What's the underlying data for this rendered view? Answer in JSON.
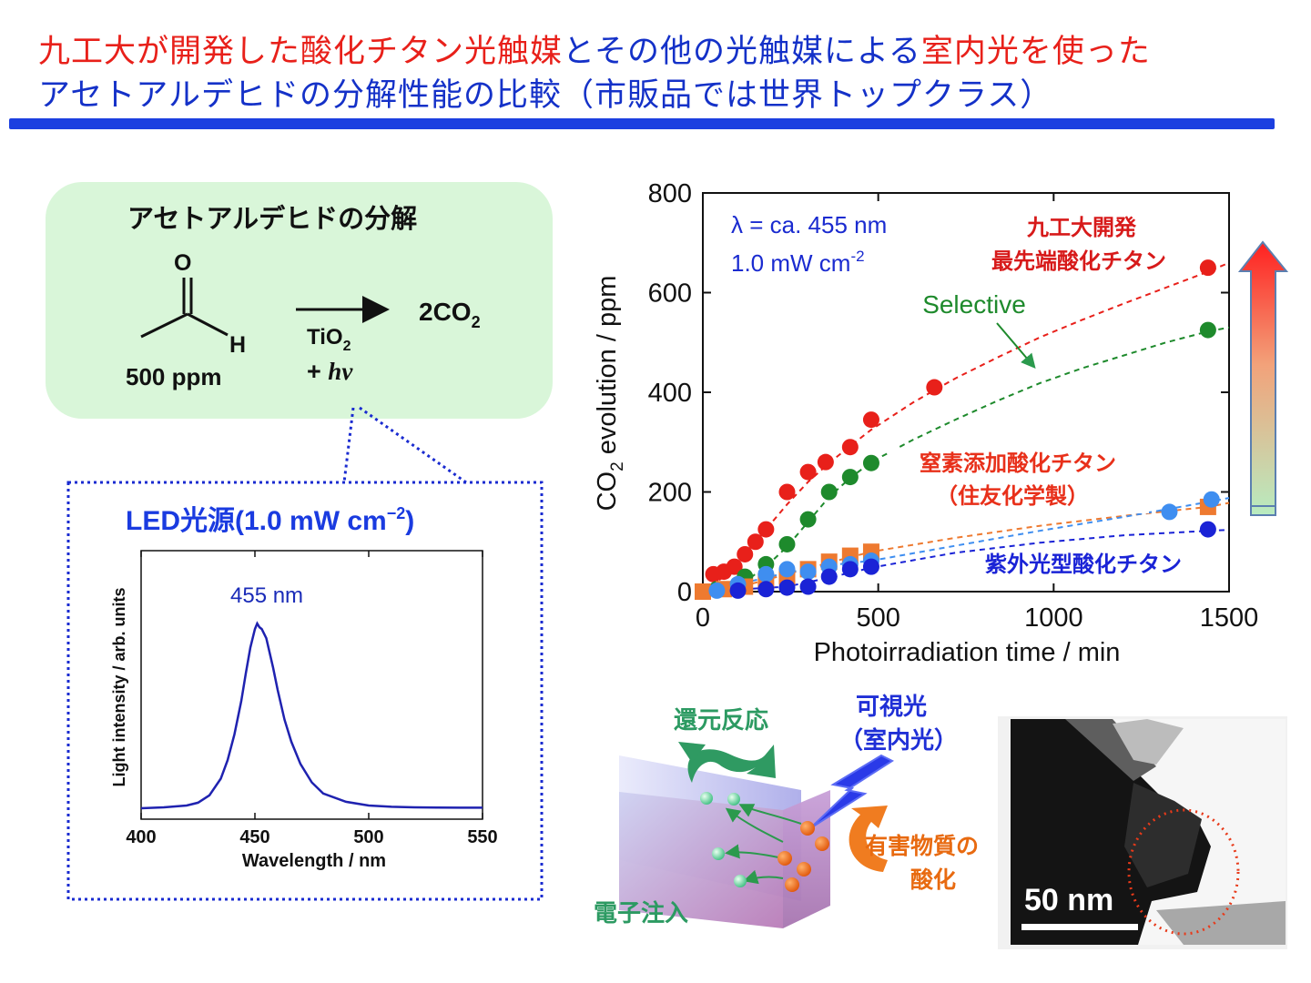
{
  "title": {
    "line1_part1": "九工大が開発した酸化チタン光触媒",
    "line1_part2": "とその他の光触媒による",
    "line1_part3": "室内光を使った",
    "line2": "アセトアルデヒドの分解性能の比較（市販品では世界トップクラス）"
  },
  "reaction": {
    "heading": "アセトアルデヒドの分解",
    "atom_o": "O",
    "atom_h": "H",
    "concentration": "500 ppm",
    "catalyst": "TiO",
    "catalyst_sub": "2",
    "light": "+ ",
    "light_h": "h",
    "light_nu": "ν",
    "product": "2CO",
    "product_sub": "2"
  },
  "led": {
    "heading": "LED光源",
    "heading_paren": "(1.0 mW cm",
    "heading_sup": "−2",
    "heading_close": ")"
  },
  "colors": {
    "title_red": "#e8201a",
    "title_blue": "#1431c8",
    "bubble_fill": "#d9f6d9",
    "tio2_red": "#e8201a",
    "selective_green": "#1e8a2c",
    "nitrogen_orange": "#ee7a30",
    "nitrogen_lightblue": "#3f8ef0",
    "uv_blue": "#1a23d6"
  },
  "chart_data": [
    {
      "type": "line",
      "title": "",
      "xlabel": "Wavelength / nm",
      "ylabel": "Light intensity / arb. units",
      "xlim": [
        400,
        550
      ],
      "xticks": [
        "400",
        "450",
        "500",
        "550"
      ],
      "annotation": "455 nm",
      "series": [
        {
          "x": [
            400,
            410,
            420,
            425,
            430,
            435,
            438,
            441,
            444,
            446,
            448,
            450,
            451,
            452,
            453,
            455,
            458,
            460,
            463,
            466,
            470,
            475,
            480,
            490,
            500,
            510,
            520,
            530,
            540,
            550
          ],
          "values": [
            0.0,
            0.005,
            0.015,
            0.03,
            0.07,
            0.16,
            0.26,
            0.4,
            0.58,
            0.73,
            0.87,
            0.97,
            1.0,
            0.98,
            0.97,
            0.92,
            0.76,
            0.64,
            0.48,
            0.36,
            0.24,
            0.14,
            0.08,
            0.035,
            0.015,
            0.008,
            0.005,
            0.004,
            0.003,
            0.003
          ]
        }
      ]
    },
    {
      "type": "scatter",
      "title": "",
      "xlabel": "Photoirradiation time / min",
      "ylabel": "CO2 evolution / ppm",
      "ylabel_main": "CO",
      "ylabel_sub": "2",
      "ylabel_rest": " evolution / ppm",
      "xlim": [
        0,
        1500
      ],
      "ylim": [
        0,
        800
      ],
      "xticks": [
        "0",
        "500",
        "1000",
        "1500"
      ],
      "yticks": [
        "0",
        "200",
        "400",
        "600",
        "800"
      ],
      "condition_lambda": "λ = ca. 455 nm",
      "condition_power": "1.0 mW cm",
      "condition_power_sup": "-2",
      "series": [
        {
          "name": "九工大開発 最先端酸化チタン",
          "label_line1": "九工大開発",
          "label_line2": "最先端酸化チタン",
          "color": "#e8201a",
          "marker": "circle",
          "x": [
            0,
            30,
            60,
            90,
            120,
            150,
            180,
            240,
            300,
            350,
            420,
            480,
            660,
            1440
          ],
          "values": [
            0,
            35,
            40,
            50,
            75,
            100,
            125,
            200,
            240,
            260,
            290,
            345,
            410,
            650
          ],
          "fit_x": [
            0,
            60,
            120,
            180,
            240,
            300,
            360,
            420,
            480,
            600,
            720,
            840,
            960,
            1080,
            1200,
            1320,
            1440,
            1500
          ],
          "fit_y": [
            0,
            30,
            75,
            125,
            175,
            220,
            258,
            292,
            325,
            380,
            428,
            470,
            510,
            545,
            578,
            610,
            642,
            660
          ]
        },
        {
          "name": "Selective",
          "color": "#1e8a2c",
          "marker": "circle",
          "x": [
            40,
            120,
            180,
            240,
            300,
            360,
            420,
            480,
            1440
          ],
          "values": [
            5,
            30,
            55,
            95,
            145,
            200,
            230,
            258,
            525
          ],
          "fit_x": [
            0,
            120,
            180,
            240,
            300,
            360,
            420,
            480,
            600,
            720,
            840,
            960,
            1080,
            1200,
            1320,
            1440,
            1500
          ],
          "fit_y": [
            0,
            20,
            50,
            90,
            140,
            190,
            228,
            260,
            305,
            345,
            383,
            418,
            448,
            474,
            500,
            522,
            530
          ]
        },
        {
          "name": "窒素添加酸化チタン （住友化学製）",
          "label_line1": "窒素添加酸化チタン",
          "label_line2": "（住友化学製）",
          "color": "#ee7a30",
          "marker": "square",
          "x": [
            0,
            60,
            120,
            180,
            240,
            300,
            360,
            420,
            480,
            1440
          ],
          "values": [
            0,
            5,
            10,
            20,
            30,
            45,
            60,
            72,
            80,
            170
          ],
          "fit_x": [
            0,
            120,
            240,
            360,
            480,
            720,
            960,
            1200,
            1440,
            1500
          ],
          "fit_y": [
            0,
            12,
            35,
            58,
            80,
            108,
            132,
            152,
            170,
            178
          ]
        },
        {
          "name": "窒素添加酸化チタン （住友化学製） (light blue)",
          "color": "#3f8ef0",
          "marker": "circle",
          "x": [
            40,
            100,
            180,
            240,
            300,
            360,
            420,
            480,
            1330,
            1450
          ],
          "values": [
            2,
            15,
            35,
            45,
            40,
            50,
            55,
            62,
            160,
            185
          ],
          "fit_x": [
            0,
            120,
            240,
            360,
            480,
            720,
            960,
            1200,
            1440,
            1500
          ],
          "fit_y": [
            0,
            18,
            38,
            53,
            62,
            92,
            122,
            150,
            180,
            188
          ]
        },
        {
          "name": "紫外光型酸化チタン",
          "color": "#1a23d6",
          "marker": "circle",
          "x": [
            100,
            180,
            240,
            300,
            360,
            420,
            480,
            1440
          ],
          "values": [
            2,
            5,
            8,
            10,
            30,
            45,
            50,
            125
          ],
          "fit_x": [
            0,
            240,
            360,
            480,
            720,
            960,
            1200,
            1440,
            1500
          ],
          "fit_y": [
            0,
            10,
            28,
            48,
            78,
            98,
            113,
            122,
            124
          ]
        }
      ]
    }
  ],
  "mechanism": {
    "reduction_label": "還元反応",
    "visible_light_line1": "可視光",
    "visible_light_line2": "（室内光）",
    "oxidation_line1": "有害物質の",
    "oxidation_line2": "酸化",
    "electron_injection": "電子注入"
  },
  "tem": {
    "scale_label": "50 nm"
  }
}
